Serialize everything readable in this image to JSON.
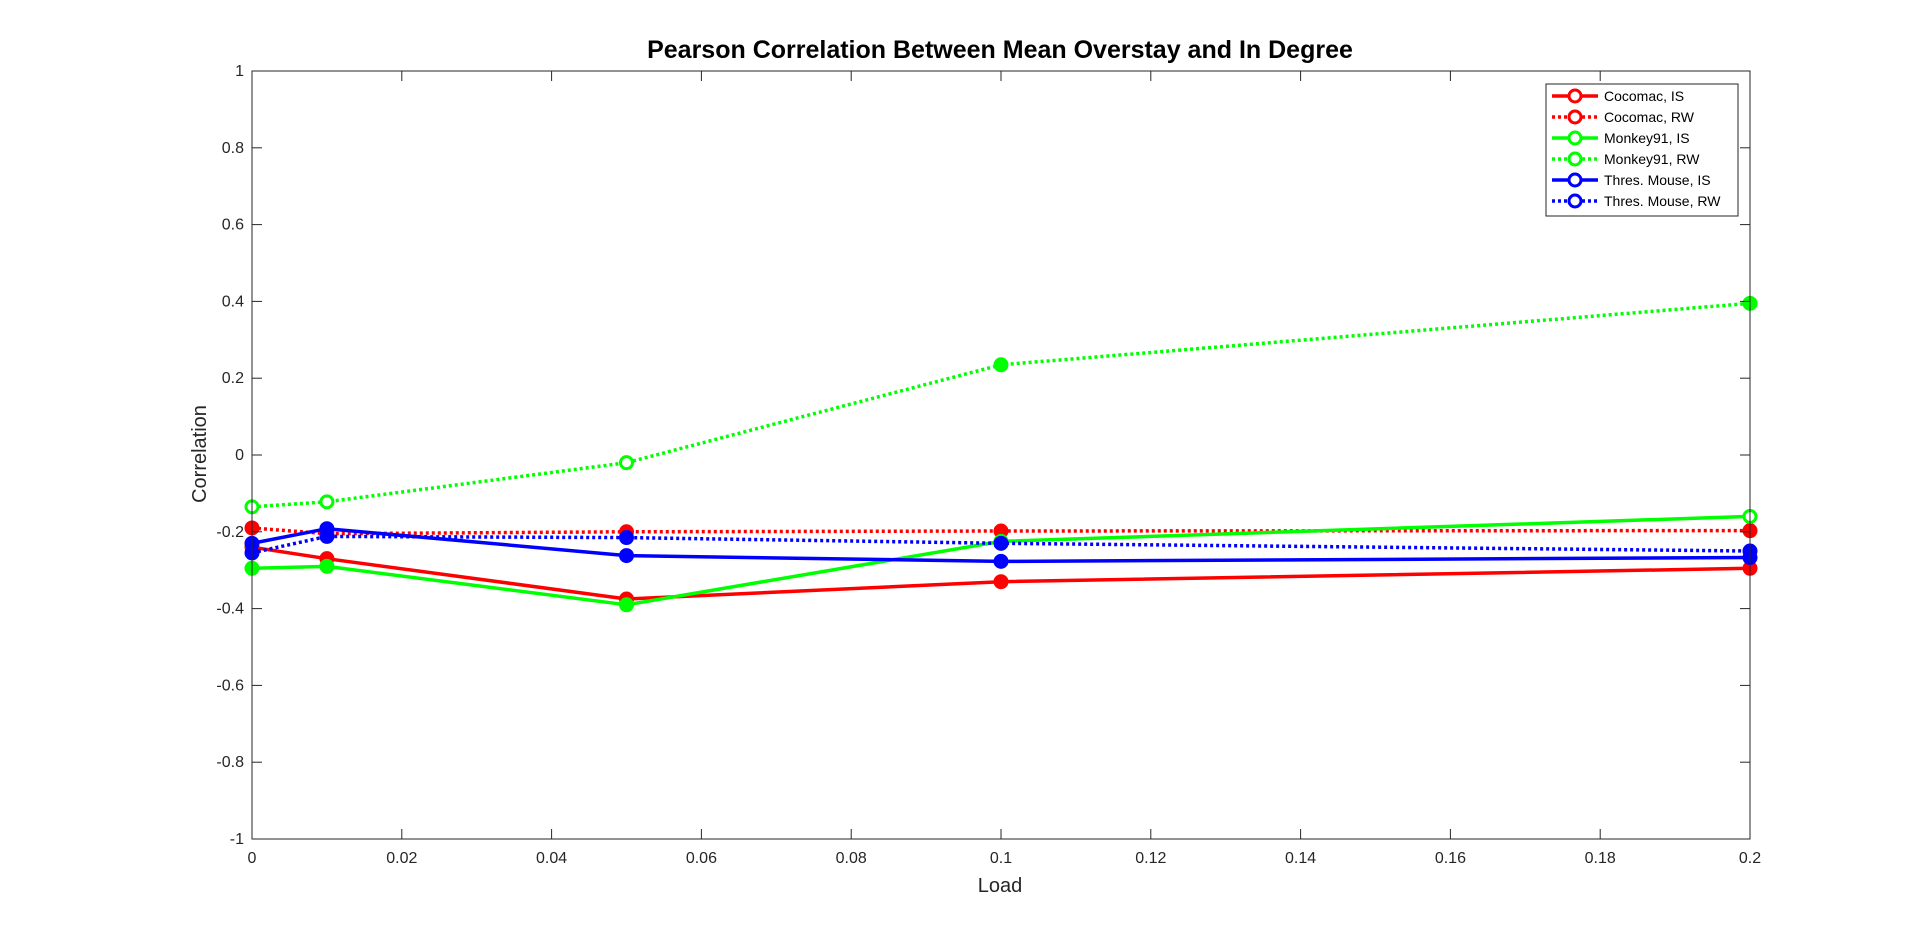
{
  "chart_data": {
    "type": "line",
    "title": "Pearson Correlation Between Mean Overstay and In Degree",
    "xlabel": "Load",
    "ylabel": "Correlation",
    "xlim": [
      0,
      0.2
    ],
    "ylim": [
      -1,
      1
    ],
    "xticks": [
      0,
      0.02,
      0.04,
      0.06,
      0.08,
      0.1,
      0.12,
      0.14,
      0.16,
      0.18,
      0.2
    ],
    "xtick_labels": [
      "0",
      "0.02",
      "0.04",
      "0.06",
      "0.08",
      "0.1",
      "0.12",
      "0.14",
      "0.16",
      "0.18",
      "0.2"
    ],
    "yticks": [
      -1,
      -0.8,
      -0.6,
      -0.4,
      -0.2,
      0,
      0.2,
      0.4,
      0.6,
      0.8,
      1
    ],
    "ytick_labels": [
      "-1",
      "-0.8",
      "-0.6",
      "-0.4",
      "-0.2",
      "0",
      "0.2",
      "0.4",
      "0.6",
      "0.8",
      "1"
    ],
    "grid": false,
    "legend_position": "top-right",
    "x": [
      0,
      0.01,
      0.05,
      0.1,
      0.2
    ],
    "series": [
      {
        "name": "Cocomac, IS",
        "color": "#ff0000",
        "style": "solid",
        "values": [
          -0.24,
          -0.27,
          -0.375,
          -0.33,
          -0.295
        ],
        "filled": [
          true,
          true,
          true,
          true,
          true
        ]
      },
      {
        "name": "Cocomac, RW",
        "color": "#ff0000",
        "style": "dotted",
        "values": [
          -0.19,
          -0.205,
          -0.2,
          -0.198,
          -0.197
        ],
        "filled": [
          true,
          false,
          true,
          true,
          true
        ]
      },
      {
        "name": "Monkey91, IS",
        "color": "#00ff00",
        "style": "solid",
        "values": [
          -0.295,
          -0.29,
          -0.39,
          -0.225,
          -0.16
        ],
        "filled": [
          true,
          true,
          true,
          false,
          false
        ]
      },
      {
        "name": "Monkey91, RW",
        "color": "#00ff00",
        "style": "dotted",
        "values": [
          -0.135,
          -0.122,
          -0.02,
          0.235,
          0.395
        ],
        "filled": [
          false,
          false,
          false,
          true,
          true
        ]
      },
      {
        "name": "Thres. Mouse, IS",
        "color": "#0000ff",
        "style": "solid",
        "values": [
          -0.23,
          -0.192,
          -0.262,
          -0.277,
          -0.267
        ],
        "filled": [
          true,
          true,
          true,
          true,
          true
        ]
      },
      {
        "name": "Thres. Mouse, RW",
        "color": "#0000ff",
        "style": "dotted",
        "values": [
          -0.255,
          -0.212,
          -0.215,
          -0.23,
          -0.25
        ],
        "filled": [
          true,
          true,
          true,
          true,
          true
        ]
      }
    ]
  }
}
